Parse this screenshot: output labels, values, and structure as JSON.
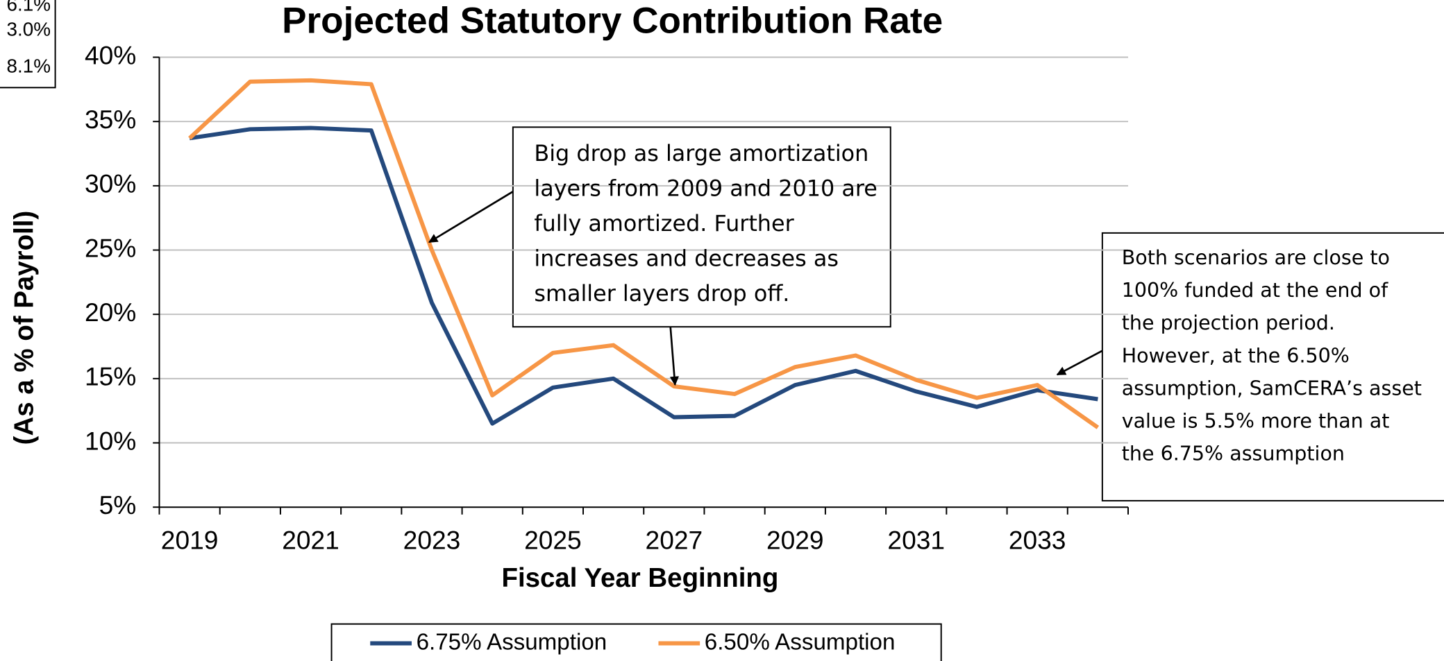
{
  "chart_data": {
    "type": "line",
    "title": "Projected Statutory Contribution Rate",
    "x_label": "Fiscal Year Beginning",
    "y_label": "(As a % of Payroll)",
    "categories": [
      "2019",
      null,
      "2021",
      null,
      "2023",
      null,
      "2025",
      null,
      "2027",
      null,
      "2029",
      null,
      "2031",
      null,
      "2033",
      null
    ],
    "series": [
      {
        "name": "6.75% Assumption",
        "color": "#24497d",
        "values": [
          33.7,
          34.4,
          34.5,
          34.3,
          20.9,
          11.5,
          14.3,
          15.0,
          12.0,
          12.1,
          14.5,
          15.6,
          14.0,
          12.8,
          14.1,
          13.4
        ]
      },
      {
        "name": "6.50% Assumption",
        "color": "#f79646",
        "values": [
          33.7,
          38.1,
          38.2,
          37.9,
          25.0,
          13.7,
          17.0,
          17.6,
          14.4,
          13.8,
          15.9,
          16.8,
          14.9,
          13.5,
          14.5,
          11.2
        ]
      }
    ],
    "ylim": [
      5,
      40
    ],
    "yticks": [
      {
        "value": 5,
        "label": "5%"
      },
      {
        "value": 10,
        "label": "10%"
      },
      {
        "value": 15,
        "label": "15%"
      },
      {
        "value": 20,
        "label": "20%"
      },
      {
        "value": 25,
        "label": "25%"
      },
      {
        "value": 30,
        "label": "30%"
      },
      {
        "value": 35,
        "label": "35%"
      },
      {
        "value": 40,
        "label": "40%"
      }
    ],
    "grid": true,
    "legend": "bottom",
    "annotations": [
      {
        "lines": [
          "Big drop as large amortization",
          "layers from 2009 and 2010 are",
          "fully amortized.  Further",
          "increases and decreases as",
          "smaller layers drop off."
        ]
      },
      {
        "lines": [
          "Both scenarios are close to",
          "100% funded at the end of",
          "the projection period.",
          "However, at the 6.50%",
          "assumption, SamCERA’s asset",
          "value is 5.5% more than at",
          "the 6.75% assumption"
        ]
      }
    ],
    "cropped_box_texts": [
      "6.1%",
      "3.0%",
      "8.1%"
    ]
  }
}
